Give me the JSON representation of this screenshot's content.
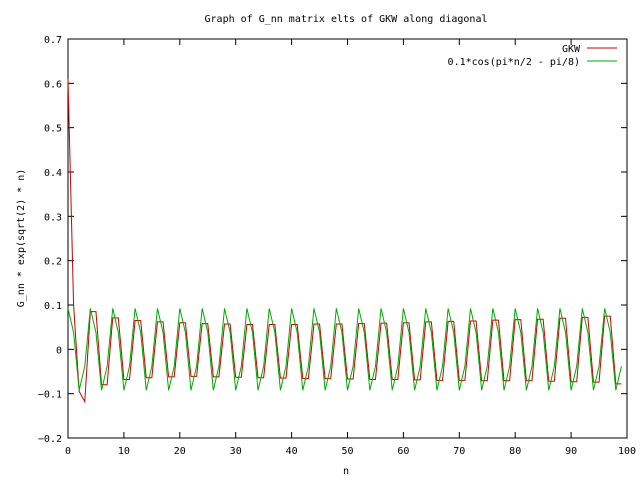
{
  "chart_data": {
    "type": "line",
    "title": "Graph of G_nn matrix elts of GKW along diagonal",
    "xlabel": "n",
    "ylabel": "G_nn * exp(sqrt(2) * n)",
    "xlim": [
      0,
      100
    ],
    "ylim": [
      -0.2,
      0.7
    ],
    "x_ticks": [
      0,
      10,
      20,
      30,
      40,
      50,
      60,
      70,
      80,
      90,
      100
    ],
    "y_ticks": [
      -0.2,
      -0.1,
      0,
      0.1,
      0.2,
      0.3,
      0.4,
      0.5,
      0.6,
      0.7
    ],
    "x_tick_labels": [
      "0",
      "10",
      "20",
      "30",
      "40",
      "50",
      "60",
      "70",
      "80",
      "90",
      "100"
    ],
    "y_tick_labels": [
      "−0.2",
      "−0.1",
      "0",
      "0.1",
      "0.2",
      "0.3",
      "0.4",
      "0.5",
      "0.6",
      "0.7"
    ],
    "legend_position": "top-right",
    "grid": false,
    "series": [
      {
        "name": "GKW",
        "color": "#cc0000",
        "x": [
          0,
          1,
          2,
          3,
          4,
          5,
          6,
          7,
          8,
          9,
          10,
          11,
          12,
          13,
          14,
          15,
          16,
          17,
          18,
          19,
          20,
          21,
          22,
          23,
          24,
          25,
          26,
          27,
          28,
          29,
          30,
          31,
          32,
          33,
          34,
          35,
          36,
          37,
          38,
          39,
          40,
          41,
          42,
          43,
          44,
          45,
          46,
          47,
          48,
          49,
          50,
          51,
          52,
          53,
          54,
          55,
          56,
          57,
          58,
          59,
          60,
          61,
          62,
          63,
          64,
          65,
          66,
          67,
          68,
          69,
          70,
          71,
          72,
          73,
          74,
          75,
          76,
          77,
          78,
          79,
          80,
          81,
          82,
          83,
          84,
          85,
          86,
          87,
          88,
          89,
          90,
          91,
          92,
          93,
          94,
          95,
          96,
          97,
          98,
          99
        ],
        "y": [
          0.61,
          0.1,
          -0.095,
          -0.118,
          0.085,
          0.085,
          -0.08,
          -0.08,
          0.071,
          0.071,
          -0.068,
          -0.068,
          0.065,
          0.065,
          -0.064,
          -0.064,
          0.062,
          0.062,
          -0.062,
          -0.062,
          0.06,
          0.06,
          -0.061,
          -0.061,
          0.058,
          0.058,
          -0.062,
          -0.062,
          0.057,
          0.057,
          -0.063,
          -0.063,
          0.056,
          0.056,
          -0.064,
          -0.064,
          0.056,
          0.056,
          -0.065,
          -0.065,
          0.056,
          0.056,
          -0.066,
          -0.066,
          0.057,
          0.057,
          -0.066,
          -0.066,
          0.057,
          0.057,
          -0.067,
          -0.067,
          0.058,
          0.058,
          -0.068,
          -0.068,
          0.059,
          0.059,
          -0.068,
          -0.068,
          0.06,
          0.06,
          -0.069,
          -0.069,
          0.062,
          0.062,
          -0.07,
          -0.07,
          0.063,
          0.063,
          -0.07,
          -0.07,
          0.064,
          0.064,
          -0.071,
          -0.071,
          0.066,
          0.066,
          -0.071,
          -0.071,
          0.067,
          0.067,
          -0.071,
          -0.071,
          0.068,
          0.068,
          -0.072,
          -0.072,
          0.07,
          0.07,
          -0.073,
          -0.073,
          0.072,
          0.072,
          -0.074,
          -0.074,
          0.075,
          0.075,
          -0.078,
          -0.078
        ]
      },
      {
        "name": "0.1*cos(pi*n/2 - pi/8)",
        "color": "#00aa00",
        "x": [
          0,
          1,
          2,
          3,
          4,
          5,
          6,
          7,
          8,
          9,
          10,
          11,
          12,
          13,
          14,
          15,
          16,
          17,
          18,
          19,
          20,
          21,
          22,
          23,
          24,
          25,
          26,
          27,
          28,
          29,
          30,
          31,
          32,
          33,
          34,
          35,
          36,
          37,
          38,
          39,
          40,
          41,
          42,
          43,
          44,
          45,
          46,
          47,
          48,
          49,
          50,
          51,
          52,
          53,
          54,
          55,
          56,
          57,
          58,
          59,
          60,
          61,
          62,
          63,
          64,
          65,
          66,
          67,
          68,
          69,
          70,
          71,
          72,
          73,
          74,
          75,
          76,
          77,
          78,
          79,
          80,
          81,
          82,
          83,
          84,
          85,
          86,
          87,
          88,
          89,
          90,
          91,
          92,
          93,
          94,
          95,
          96,
          97,
          98,
          99
        ],
        "y": [
          0.0924,
          0.0383,
          -0.0924,
          -0.0383,
          0.0924,
          0.0383,
          -0.0924,
          -0.0383,
          0.0924,
          0.0383,
          -0.0924,
          -0.0383,
          0.0924,
          0.0383,
          -0.0924,
          -0.0383,
          0.0924,
          0.0383,
          -0.0924,
          -0.0383,
          0.0924,
          0.0383,
          -0.0924,
          -0.0383,
          0.0924,
          0.0383,
          -0.0924,
          -0.0383,
          0.0924,
          0.0383,
          -0.0924,
          -0.0383,
          0.0924,
          0.0383,
          -0.0924,
          -0.0383,
          0.0924,
          0.0383,
          -0.0924,
          -0.0383,
          0.0924,
          0.0383,
          -0.0924,
          -0.0383,
          0.0924,
          0.0383,
          -0.0924,
          -0.0383,
          0.0924,
          0.0383,
          -0.0924,
          -0.0383,
          0.0924,
          0.0383,
          -0.0924,
          -0.0383,
          0.0924,
          0.0383,
          -0.0924,
          -0.0383,
          0.0924,
          0.0383,
          -0.0924,
          -0.0383,
          0.0924,
          0.0383,
          -0.0924,
          -0.0383,
          0.0924,
          0.0383,
          -0.0924,
          -0.0383,
          0.0924,
          0.0383,
          -0.0924,
          -0.0383,
          0.0924,
          0.0383,
          -0.0924,
          -0.0383,
          0.0924,
          0.0383,
          -0.0924,
          -0.0383,
          0.0924,
          0.0383,
          -0.0924,
          -0.0383,
          0.0924,
          0.0383,
          -0.0924,
          -0.0383,
          0.0924,
          0.0383,
          -0.0924,
          -0.0383,
          0.0924,
          0.0383,
          -0.0924,
          -0.0383
        ]
      }
    ]
  }
}
